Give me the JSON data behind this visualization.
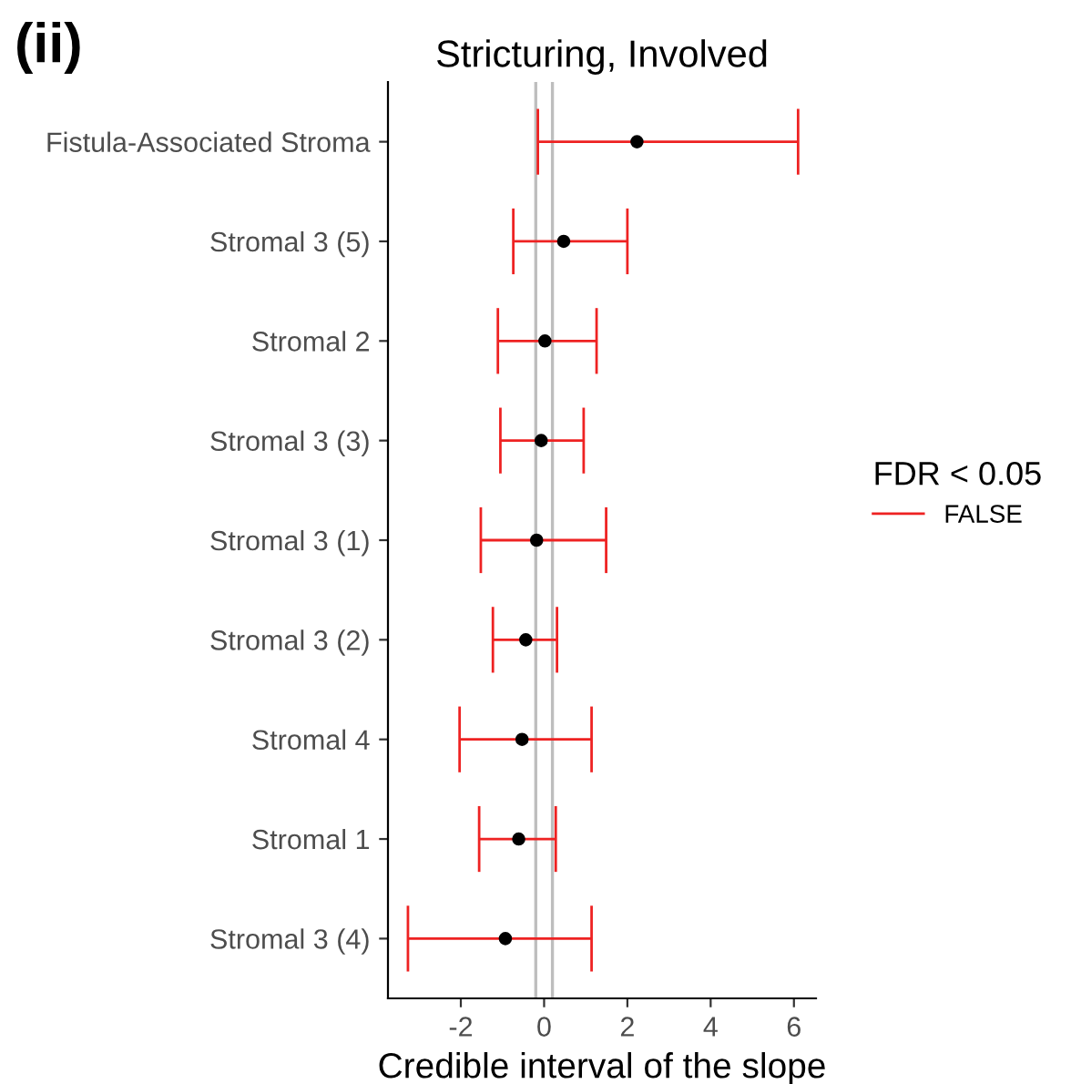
{
  "chart_data": {
    "type": "scatter",
    "orientation": "horizontal",
    "title": "Stricturing, Involved",
    "xlabel": "Credible interval of the slope",
    "legend_title": "FDR < 0.05",
    "legend": "right",
    "grid": false,
    "annotations": [
      "(ii)"
    ],
    "categories": [
      "Fistula-Associated Stroma",
      "Stromal 3 (5)",
      "Stromal 2",
      "Stromal 3 (3)",
      "Stromal 3 (1)",
      "Stromal 3 (2)",
      "Stromal 4",
      "Stromal 1",
      "Stromal 3 (4)"
    ],
    "series": [
      {
        "name": "FALSE",
        "color": "#ee2222",
        "colors": [
          "#000000",
          "#000000",
          "#000000",
          "#000000",
          "#000000",
          "#000000",
          "#000000",
          "#000000",
          "#000000"
        ],
        "marker": "circle",
        "values": [
          2.23,
          0.47,
          0.02,
          -0.07,
          -0.18,
          -0.44,
          -0.53,
          -0.61,
          -0.93
        ],
        "errors": [
          [
            -0.15,
            6.1
          ],
          [
            -0.74,
            2.0
          ],
          [
            -1.11,
            1.26
          ],
          [
            -1.05,
            0.95
          ],
          [
            -1.52,
            1.49
          ],
          [
            -1.23,
            0.31
          ],
          [
            -2.03,
            1.14
          ],
          [
            -1.56,
            0.28
          ],
          [
            -3.27,
            1.14
          ]
        ]
      }
    ],
    "ref_lines": [
      {
        "axis": "x",
        "value": -0.2,
        "color": "#bebebe"
      },
      {
        "axis": "x",
        "value": 0.2,
        "color": "#bebebe"
      }
    ],
    "xlim": [
      -3.75,
      6.53
    ],
    "xticks": [
      -2,
      0,
      2,
      4,
      6
    ]
  }
}
